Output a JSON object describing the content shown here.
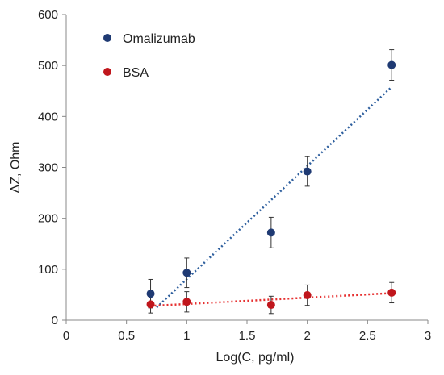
{
  "chart_data": {
    "type": "scatter",
    "title": "",
    "xlabel": "Log(C, pg/ml)",
    "ylabel": "ΔZ, Ohm",
    "xlim": [
      0,
      3
    ],
    "ylim": [
      0,
      600
    ],
    "x_ticks": [
      0,
      0.5,
      1,
      1.5,
      2,
      2.5,
      3
    ],
    "y_ticks": [
      0,
      100,
      200,
      300,
      400,
      500,
      600
    ],
    "grid": false,
    "legend_position": "top-left",
    "series": [
      {
        "name": "Omalizumab",
        "color": "#1f3a73",
        "points": [
          {
            "x": 0.7,
            "y": 52,
            "err": 28
          },
          {
            "x": 1.0,
            "y": 93,
            "err": 29
          },
          {
            "x": 1.7,
            "y": 172,
            "err": 30
          },
          {
            "x": 2.0,
            "y": 292,
            "err": 29
          },
          {
            "x": 2.7,
            "y": 501,
            "err": 30
          }
        ],
        "trendline": {
          "style": "dotted",
          "color": "#2e5f9e",
          "from": [
            0.75,
            25
          ],
          "to": [
            2.7,
            458
          ]
        }
      },
      {
        "name": "BSA",
        "color": "#c0161c",
        "points": [
          {
            "x": 0.7,
            "y": 31,
            "err": 17
          },
          {
            "x": 1.0,
            "y": 36,
            "err": 20
          },
          {
            "x": 1.7,
            "y": 30,
            "err": 17
          },
          {
            "x": 2.0,
            "y": 49,
            "err": 20
          },
          {
            "x": 2.7,
            "y": 54,
            "err": 20
          }
        ],
        "trendline": {
          "style": "dotted",
          "color": "#e63030",
          "from": [
            0.7,
            28
          ],
          "to": [
            2.7,
            53
          ]
        }
      }
    ]
  }
}
